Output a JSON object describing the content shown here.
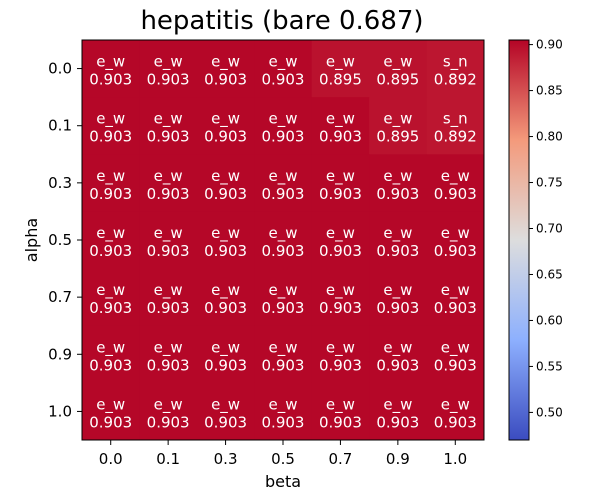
{
  "chart_data": {
    "type": "heatmap",
    "title": "hepatitis (bare 0.687)",
    "xlabel": "beta",
    "ylabel": "alpha",
    "x_ticklabels": [
      "0.0",
      "0.1",
      "0.3",
      "0.5",
      "0.7",
      "0.9",
      "1.0"
    ],
    "y_ticklabels": [
      "0.0",
      "0.1",
      "0.3",
      "0.5",
      "0.7",
      "0.9",
      "1.0"
    ],
    "values": [
      [
        0.903,
        0.903,
        0.903,
        0.903,
        0.895,
        0.895,
        0.892
      ],
      [
        0.903,
        0.903,
        0.903,
        0.903,
        0.903,
        0.895,
        0.892
      ],
      [
        0.903,
        0.903,
        0.903,
        0.903,
        0.903,
        0.903,
        0.903
      ],
      [
        0.903,
        0.903,
        0.903,
        0.903,
        0.903,
        0.903,
        0.903
      ],
      [
        0.903,
        0.903,
        0.903,
        0.903,
        0.903,
        0.903,
        0.903
      ],
      [
        0.903,
        0.903,
        0.903,
        0.903,
        0.903,
        0.903,
        0.903
      ],
      [
        0.903,
        0.903,
        0.903,
        0.903,
        0.903,
        0.903,
        0.903
      ]
    ],
    "value_labels": [
      [
        "0.903",
        "0.903",
        "0.903",
        "0.903",
        "0.895",
        "0.895",
        "0.892"
      ],
      [
        "0.903",
        "0.903",
        "0.903",
        "0.903",
        "0.903",
        "0.895",
        "0.892"
      ],
      [
        "0.903",
        "0.903",
        "0.903",
        "0.903",
        "0.903",
        "0.903",
        "0.903"
      ],
      [
        "0.903",
        "0.903",
        "0.903",
        "0.903",
        "0.903",
        "0.903",
        "0.903"
      ],
      [
        "0.903",
        "0.903",
        "0.903",
        "0.903",
        "0.903",
        "0.903",
        "0.903"
      ],
      [
        "0.903",
        "0.903",
        "0.903",
        "0.903",
        "0.903",
        "0.903",
        "0.903"
      ],
      [
        "0.903",
        "0.903",
        "0.903",
        "0.903",
        "0.903",
        "0.903",
        "0.903"
      ]
    ],
    "cell_labels": [
      [
        "e_w",
        "e_w",
        "e_w",
        "e_w",
        "e_w",
        "e_w",
        "s_n"
      ],
      [
        "e_w",
        "e_w",
        "e_w",
        "e_w",
        "e_w",
        "e_w",
        "s_n"
      ],
      [
        "e_w",
        "e_w",
        "e_w",
        "e_w",
        "e_w",
        "e_w",
        "e_w"
      ],
      [
        "e_w",
        "e_w",
        "e_w",
        "e_w",
        "e_w",
        "e_w",
        "e_w"
      ],
      [
        "e_w",
        "e_w",
        "e_w",
        "e_w",
        "e_w",
        "e_w",
        "e_w"
      ],
      [
        "e_w",
        "e_w",
        "e_w",
        "e_w",
        "e_w",
        "e_w",
        "e_w"
      ],
      [
        "e_w",
        "e_w",
        "e_w",
        "e_w",
        "e_w",
        "e_w",
        "e_w"
      ]
    ],
    "colorbar": {
      "colormap": "coolwarm",
      "range": [
        0.47,
        0.905
      ],
      "ticks": [
        0.5,
        0.55,
        0.6,
        0.65,
        0.7,
        0.75,
        0.8,
        0.85,
        0.9
      ],
      "ticklabels": [
        "0.50",
        "0.55",
        "0.60",
        "0.65",
        "0.70",
        "0.75",
        "0.80",
        "0.85",
        "0.90"
      ]
    },
    "colors": {
      "cell_text": "#ffffff",
      "axis": "#000000"
    }
  }
}
